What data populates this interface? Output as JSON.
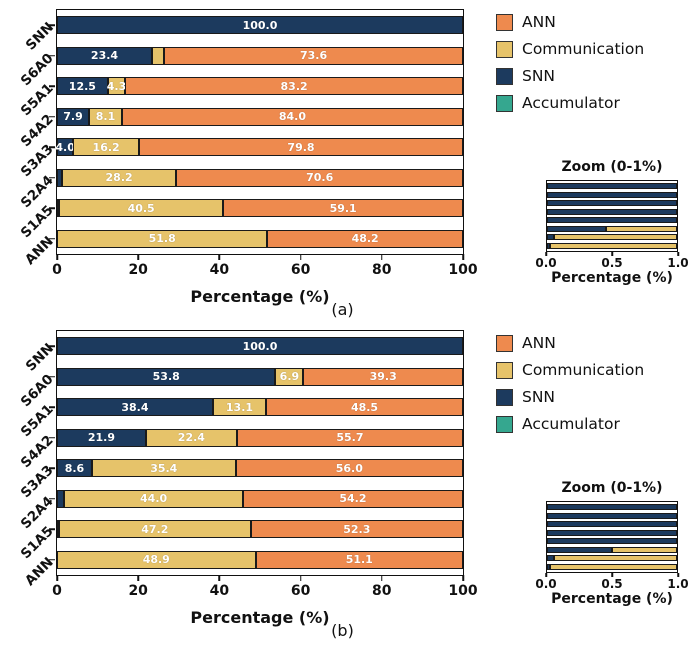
{
  "colors": {
    "SNN": "#1c3a5e",
    "Communication": "#e6c36a",
    "ANN": "#ee8a4e",
    "Accumulator": "#35a78f"
  },
  "legend": {
    "items": [
      {
        "label": "ANN",
        "series": "ANN"
      },
      {
        "label": "Communication",
        "series": "Communication"
      },
      {
        "label": "SNN",
        "series": "SNN"
      },
      {
        "label": "Accumulator",
        "series": "Accumulator"
      }
    ]
  },
  "chart_data": [
    {
      "type": "bar",
      "orientation": "horizontal",
      "caption": "(a)",
      "xlabel": "Percentage (%)",
      "xlim": [
        0,
        100
      ],
      "xticks": [
        "0",
        "20",
        "40",
        "60",
        "80",
        "100"
      ],
      "categories": [
        "SNN",
        "S6A0",
        "S5A1",
        "S4A2",
        "S3A3",
        "S2A4",
        "S1A5",
        "ANN"
      ],
      "rows": [
        [
          {
            "series": "SNN",
            "value": 100.0,
            "label": "100.0"
          }
        ],
        [
          {
            "series": "SNN",
            "value": 23.4,
            "label": "23.4"
          },
          {
            "series": "Communication",
            "value": 3.0,
            "label": ""
          },
          {
            "series": "ANN",
            "value": 73.6,
            "label": "73.6"
          }
        ],
        [
          {
            "series": "SNN",
            "value": 12.5,
            "label": "12.5"
          },
          {
            "series": "Communication",
            "value": 4.3,
            "label": "4.3"
          },
          {
            "series": "ANN",
            "value": 83.2,
            "label": "83.2"
          }
        ],
        [
          {
            "series": "SNN",
            "value": 7.9,
            "label": "7.9"
          },
          {
            "series": "Communication",
            "value": 8.1,
            "label": "8.1"
          },
          {
            "series": "ANN",
            "value": 84.0,
            "label": "84.0"
          }
        ],
        [
          {
            "series": "SNN",
            "value": 4.0,
            "label": "4.0"
          },
          {
            "series": "Communication",
            "value": 16.2,
            "label": "16.2"
          },
          {
            "series": "ANN",
            "value": 79.8,
            "label": "79.8"
          }
        ],
        [
          {
            "series": "SNN",
            "value": 1.2,
            "label": ""
          },
          {
            "series": "Communication",
            "value": 28.2,
            "label": "28.2"
          },
          {
            "series": "ANN",
            "value": 70.6,
            "label": "70.6"
          }
        ],
        [
          {
            "series": "SNN",
            "value": 0.4,
            "label": ""
          },
          {
            "series": "Communication",
            "value": 40.5,
            "label": "40.5"
          },
          {
            "series": "ANN",
            "value": 59.1,
            "label": "59.1"
          }
        ],
        [
          {
            "series": "Communication",
            "value": 51.8,
            "label": "51.8"
          },
          {
            "series": "ANN",
            "value": 48.2,
            "label": "48.2"
          }
        ]
      ],
      "zoom": {
        "title": "Zoom (0-1%)",
        "xlabel": "Percentage (%)",
        "xlim": [
          0.0,
          1.0
        ],
        "xticks": [
          "0.0",
          "0.5",
          "1.0"
        ],
        "snn_fraction": [
          1,
          1,
          1,
          1,
          1,
          0.45,
          0.05,
          0.02
        ]
      }
    },
    {
      "type": "bar",
      "orientation": "horizontal",
      "caption": "(b)",
      "xlabel": "Percentage (%)",
      "xlim": [
        0,
        100
      ],
      "xticks": [
        "0",
        "20",
        "40",
        "60",
        "80",
        "100"
      ],
      "categories": [
        "SNN",
        "S6A0",
        "S5A1",
        "S4A2",
        "S3A3",
        "S2A4",
        "S1A5",
        "ANN"
      ],
      "rows": [
        [
          {
            "series": "SNN",
            "value": 100.0,
            "label": "100.0"
          }
        ],
        [
          {
            "series": "SNN",
            "value": 53.8,
            "label": "53.8"
          },
          {
            "series": "Communication",
            "value": 6.9,
            "label": "6.9"
          },
          {
            "series": "ANN",
            "value": 39.3,
            "label": "39.3"
          }
        ],
        [
          {
            "series": "SNN",
            "value": 38.4,
            "label": "38.4"
          },
          {
            "series": "Communication",
            "value": 13.1,
            "label": "13.1"
          },
          {
            "series": "ANN",
            "value": 48.5,
            "label": "48.5"
          }
        ],
        [
          {
            "series": "SNN",
            "value": 21.9,
            "label": "21.9"
          },
          {
            "series": "Communication",
            "value": 22.4,
            "label": "22.4"
          },
          {
            "series": "ANN",
            "value": 55.7,
            "label": "55.7"
          }
        ],
        [
          {
            "series": "SNN",
            "value": 8.6,
            "label": "8.6"
          },
          {
            "series": "Communication",
            "value": 35.4,
            "label": "35.4"
          },
          {
            "series": "ANN",
            "value": 56.0,
            "label": "56.0"
          }
        ],
        [
          {
            "series": "SNN",
            "value": 1.8,
            "label": ""
          },
          {
            "series": "Communication",
            "value": 44.0,
            "label": "44.0"
          },
          {
            "series": "ANN",
            "value": 54.2,
            "label": "54.2"
          }
        ],
        [
          {
            "series": "SNN",
            "value": 0.5,
            "label": ""
          },
          {
            "series": "Communication",
            "value": 47.2,
            "label": "47.2"
          },
          {
            "series": "ANN",
            "value": 52.3,
            "label": "52.3"
          }
        ],
        [
          {
            "series": "Communication",
            "value": 48.9,
            "label": "48.9"
          },
          {
            "series": "ANN",
            "value": 51.1,
            "label": "51.1"
          }
        ]
      ],
      "zoom": {
        "title": "Zoom (0-1%)",
        "xlabel": "Percentage (%)",
        "xlim": [
          0.0,
          1.0
        ],
        "xticks": [
          "0.0",
          "0.5",
          "1.0"
        ],
        "snn_fraction": [
          1,
          1,
          1,
          1,
          1,
          0.5,
          0.05,
          0.02
        ]
      }
    }
  ]
}
